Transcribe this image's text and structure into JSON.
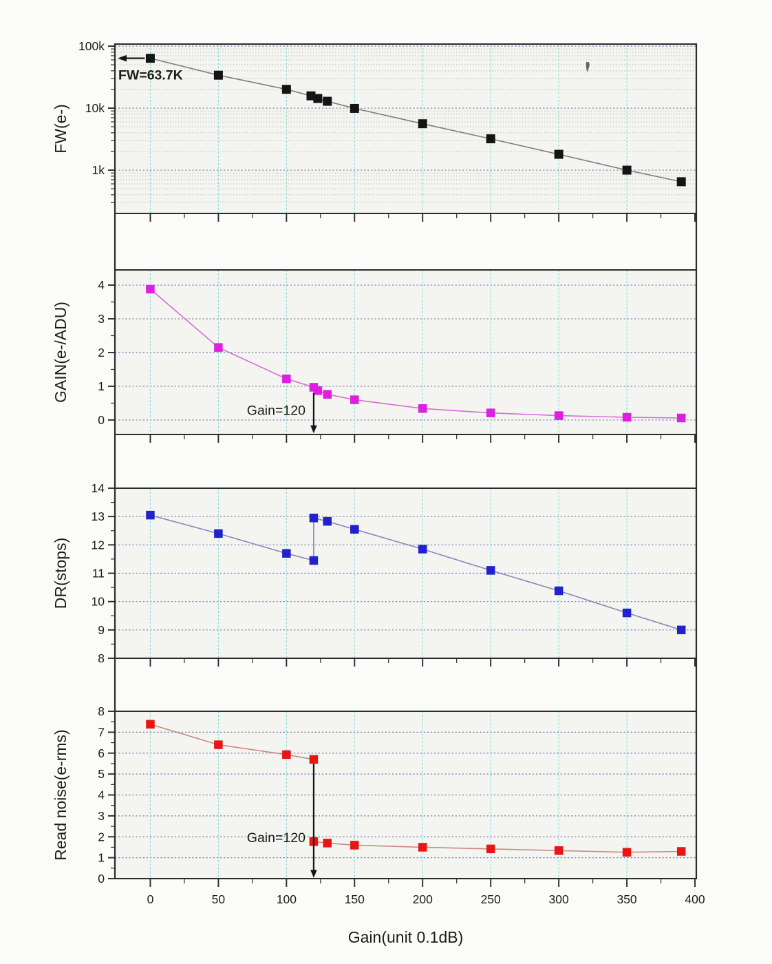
{
  "figure": {
    "xlabel": "Gain(unit 0.1dB)",
    "x_tick_labels": [
      "0",
      "50",
      "100",
      "150",
      "200",
      "250",
      "300",
      "350",
      "400"
    ],
    "x_tick_values": [
      0,
      50,
      100,
      150,
      200,
      250,
      300,
      350,
      400
    ],
    "x_minor_step": 25,
    "x_range": [
      -26,
      401
    ],
    "panel_background": "#f4f4f1",
    "page_background": "#fbfbf9",
    "frame_color": "#2b2b2b",
    "grid_vertical_color": "#8ce0e0",
    "grid_major_color": "#7878b2",
    "grid_minor_color": "#b8b8b4",
    "text_color": "#1c1c1c",
    "annotation_arrow_color": "#151515"
  },
  "chart_data": [
    {
      "type": "line",
      "ylabel": "FW(e-)",
      "yscale": "log",
      "y_tick_labels": [
        "100k",
        "10k",
        "1k"
      ],
      "y_tick_values": [
        100000,
        10000,
        1000
      ],
      "ylim": [
        200,
        108000
      ],
      "grid": true,
      "marker_color": "#141414",
      "line_color": "#7d7d7d",
      "x": [
        0,
        50,
        100,
        118,
        123,
        130,
        150,
        200,
        250,
        300,
        350,
        390
      ],
      "y": [
        63700,
        34000,
        20100,
        15800,
        14300,
        12900,
        9900,
        5600,
        3200,
        1800,
        1000,
        650
      ],
      "annotation": {
        "text": "FW=63.7K",
        "arrow": "left",
        "x": 0,
        "y": 63700
      }
    },
    {
      "type": "line",
      "ylabel": "GAIN(e-/ADU)",
      "yscale": "linear",
      "y_tick_labels": [
        "4",
        "3",
        "2",
        "1",
        "0"
      ],
      "y_tick_values": [
        4,
        3,
        2,
        1,
        0
      ],
      "y_minor_step": 0.5,
      "ylim": [
        -0.43,
        4.45
      ],
      "grid": true,
      "marker_color": "#df1fdf",
      "line_color": "#d36fd3",
      "x": [
        0,
        50,
        100,
        120,
        123,
        130,
        150,
        200,
        250,
        300,
        350,
        390
      ],
      "y": [
        3.88,
        2.15,
        1.22,
        0.97,
        0.87,
        0.76,
        0.6,
        0.34,
        0.21,
        0.13,
        0.08,
        0.06
      ],
      "annotation": {
        "text": "Gain=120",
        "arrow": "down",
        "x": 120,
        "y_from": 0.8,
        "y_to": -0.2,
        "label_y": 0.15
      }
    },
    {
      "type": "line",
      "ylabel": "DR(stops)",
      "yscale": "linear",
      "y_tick_labels": [
        "14",
        "13",
        "12",
        "11",
        "10",
        "9",
        "8"
      ],
      "y_tick_values": [
        14,
        13,
        12,
        11,
        10,
        9,
        8
      ],
      "y_minor_step": 0.5,
      "ylim": [
        8,
        14
      ],
      "grid": true,
      "marker_color": "#2222cb",
      "line_color": "#8888bb",
      "x": [
        0,
        50,
        100,
        120,
        120,
        130,
        150,
        200,
        250,
        300,
        350,
        390
      ],
      "y": [
        13.05,
        12.4,
        11.7,
        11.45,
        12.95,
        12.83,
        12.55,
        11.85,
        11.1,
        10.38,
        9.6,
        9.0
      ],
      "annotation": null
    },
    {
      "type": "line",
      "ylabel": "Read noise(e-rms)",
      "yscale": "linear",
      "y_tick_labels": [
        "8",
        "7",
        "6",
        "5",
        "4",
        "3",
        "2",
        "1",
        "0"
      ],
      "y_tick_values": [
        8,
        7,
        6,
        5,
        4,
        3,
        2,
        1,
        0
      ],
      "y_minor_step": 0.5,
      "ylim": [
        0,
        8
      ],
      "grid": true,
      "marker_color": "#e81515",
      "line_color": "#cc8888",
      "x": [
        0,
        50,
        100,
        120,
        120,
        130,
        150,
        200,
        250,
        300,
        350,
        390
      ],
      "y": [
        7.38,
        6.4,
        5.93,
        5.7,
        1.77,
        1.7,
        1.6,
        1.5,
        1.42,
        1.34,
        1.26,
        1.3
      ],
      "annotation": {
        "text": "Gain=120",
        "arrow": "down",
        "x": 120,
        "y_from": 5.5,
        "y_to": 0.35,
        "label_y": 1.75
      }
    }
  ]
}
